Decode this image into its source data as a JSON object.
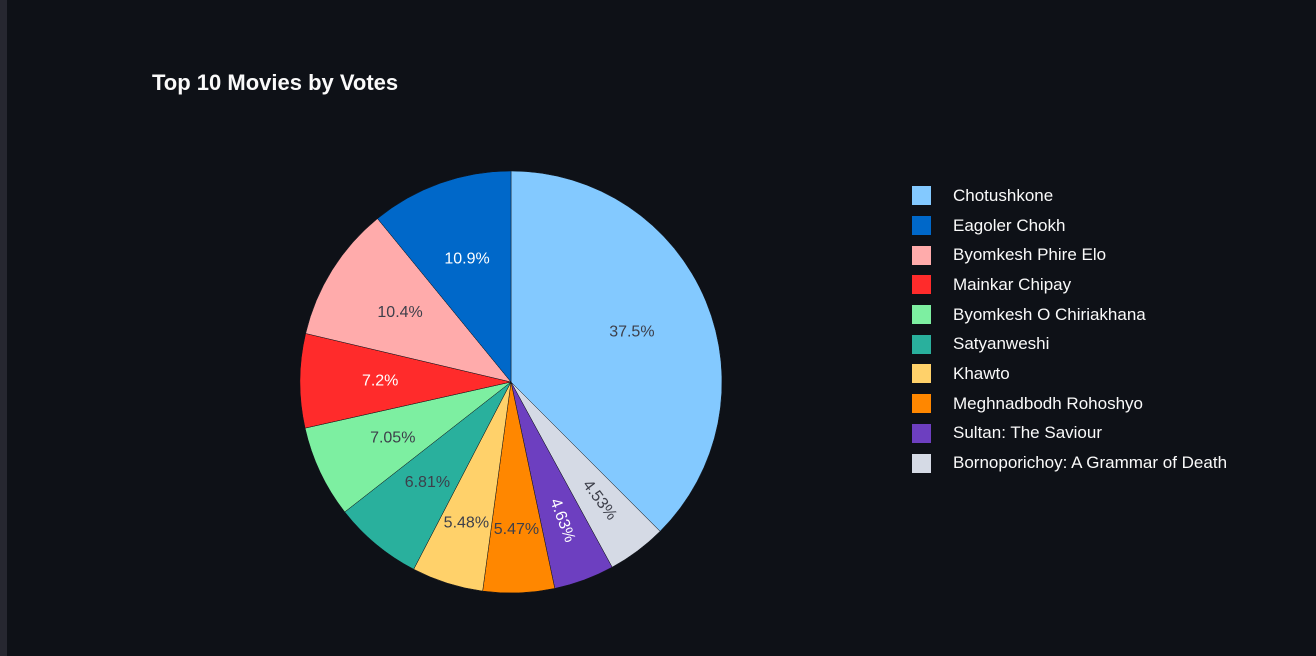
{
  "chart_data": {
    "type": "pie",
    "title": "Top 10 Movies by Votes",
    "legend_position": "right",
    "slices": [
      {
        "label": "Chotushkone",
        "value": 37.5,
        "value_label": "37.5%",
        "color": "#83c9ff",
        "text_color": "#3d3f4a"
      },
      {
        "label": "Bornoporichoy: A Grammar of Death",
        "value": 4.53,
        "value_label": "4.53%",
        "color": "#d5dae5",
        "text_color": "#3d3f4a"
      },
      {
        "label": "Sultan: The Saviour",
        "value": 4.63,
        "value_label": "4.63%",
        "color": "#6d3fc0",
        "text_color": "#ffffff"
      },
      {
        "label": "Meghnadbodh Rohoshyo",
        "value": 5.47,
        "value_label": "5.47%",
        "color": "#ff8700",
        "text_color": "#3d3f4a"
      },
      {
        "label": "Khawto",
        "value": 5.48,
        "value_label": "5.48%",
        "color": "#ffd16a",
        "text_color": "#3d3f4a"
      },
      {
        "label": "Satyanweshi",
        "value": 6.81,
        "value_label": "6.81%",
        "color": "#29b09d",
        "text_color": "#3d3f4a"
      },
      {
        "label": "Byomkesh O Chiriakhana",
        "value": 7.05,
        "value_label": "7.05%",
        "color": "#7defa1",
        "text_color": "#3d3f4a"
      },
      {
        "label": "Mainkar Chipay",
        "value": 7.2,
        "value_label": "7.2%",
        "color": "#ff2b2b",
        "text_color": "#ffffff"
      },
      {
        "label": "Byomkesh Phire Elo",
        "value": 10.4,
        "value_label": "10.4%",
        "color": "#ffabab",
        "text_color": "#3d3f4a"
      },
      {
        "label": "Eagoler Chokh",
        "value": 10.9,
        "value_label": "10.9%",
        "color": "#0068c9",
        "text_color": "#ffffff"
      }
    ],
    "legend": [
      {
        "label": "Chotushkone",
        "color": "#83c9ff"
      },
      {
        "label": "Eagoler Chokh",
        "color": "#0068c9"
      },
      {
        "label": "Byomkesh Phire Elo",
        "color": "#ffabab"
      },
      {
        "label": "Mainkar Chipay",
        "color": "#ff2b2b"
      },
      {
        "label": "Byomkesh O Chiriakhana",
        "color": "#7defa1"
      },
      {
        "label": "Satyanweshi",
        "color": "#29b09d"
      },
      {
        "label": "Khawto",
        "color": "#ffd16a"
      },
      {
        "label": "Meghnadbodh Rohoshyo",
        "color": "#ff8700"
      },
      {
        "label": "Sultan: The Saviour",
        "color": "#6d3fc0"
      },
      {
        "label": "Bornoporichoy: A Grammar of Death",
        "color": "#d5dae5"
      }
    ]
  }
}
